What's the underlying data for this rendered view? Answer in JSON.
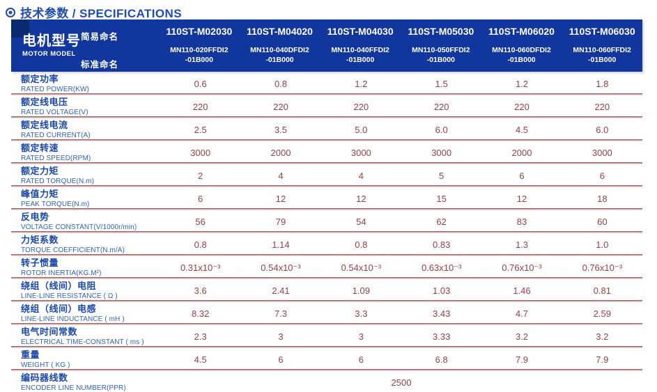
{
  "title": {
    "icon": "circled-dot",
    "text": "技术参数 / SPECIFICATIONS"
  },
  "colors": {
    "title_blue": "#1f4cb3",
    "header_bg": "#11379e",
    "header_corner": "#0a2a70",
    "label_zh": "#1b49ae",
    "label_en": "#2f62c5",
    "value_red": "#9c3e44",
    "separator_dark": "#a06565",
    "separator_light": "#f0dcdc"
  },
  "table": {
    "header": {
      "row_label_zh": "电机型号",
      "row_label_en": "MOTOR MODEL",
      "simple_name_label": "简易命名",
      "standard_name_label": "标准命名",
      "models": [
        {
          "simple": "110ST-M02030",
          "standard": "MN110-020FFDI2\n-01B000"
        },
        {
          "simple": "110ST-M04020",
          "standard": "MN110-040DFDI2\n-01B000"
        },
        {
          "simple": "110ST-M04030",
          "standard": "MN110-040FFDI2\n-01B000"
        },
        {
          "simple": "110ST-M05030",
          "standard": "MN110-050FFDI2\n-01B000"
        },
        {
          "simple": "110ST-M06020",
          "standard": "MN110-060DFDI2\n-01B000"
        },
        {
          "simple": "110ST-M06030",
          "standard": "MN110-060FFDI2\n-01B000"
        }
      ]
    },
    "rows": [
      {
        "zh": "额定功率",
        "en": "RATED POWER(KW)",
        "values": [
          "0.6",
          "0.8",
          "1.2",
          "1.5",
          "1.2",
          "1.8"
        ]
      },
      {
        "zh": "额定线电压",
        "en": "RATED VOLTAGE(V)",
        "values": [
          "220",
          "220",
          "220",
          "220",
          "220",
          "220"
        ]
      },
      {
        "zh": "额定线电流",
        "en": "RATED CURRENT(A)",
        "values": [
          "2.5",
          "3.5",
          "5.0",
          "6.0",
          "4.5",
          "6.0"
        ]
      },
      {
        "zh": "额定转速",
        "en": "RATED SPEED(RPM)",
        "values": [
          "3000",
          "2000",
          "3000",
          "3000",
          "2000",
          "3000"
        ]
      },
      {
        "zh": "额定力矩",
        "en": "RATED TORQUE(N.m)",
        "values": [
          "2",
          "4",
          "4",
          "5",
          "6",
          "6"
        ]
      },
      {
        "zh": "峰值力矩",
        "en": "PEAK TORQUE(N.m)",
        "values": [
          "6",
          "12",
          "12",
          "15",
          "12",
          "18"
        ]
      },
      {
        "zh": "反电势",
        "en": "VOLTAGE CONSTANT(V/1000r/min)",
        "values": [
          "56",
          "79",
          "54",
          "62",
          "83",
          "60"
        ]
      },
      {
        "zh": "力矩系数",
        "en": "TORQUE COEFFICIENT(N.m/A)",
        "values": [
          "0.8",
          "1.14",
          "0.8",
          "0.83",
          "1.3",
          "1.0"
        ]
      },
      {
        "zh": "转子惯量",
        "en": "ROTOR INERTIA(KG.M²)",
        "values": [
          "0.31x10⁻³",
          "0.54x10⁻³",
          "0.54x10⁻³",
          "0.63x10⁻³",
          "0.76x10⁻³",
          "0.76x10⁻³"
        ]
      },
      {
        "zh": "绕组（线间）电阻",
        "en": "LINE-LINE RESISTANCE ( Ω )",
        "values": [
          "3.6",
          "2.41",
          "1.09",
          "1.03",
          "1.46",
          "0.81"
        ]
      },
      {
        "zh": "绕组（线间）电感",
        "en": "LINE-LINE INDUCTANCE ( mH )",
        "values": [
          "8.32",
          "7.3",
          "3.3",
          "3.43",
          "4.7",
          "2.59"
        ]
      },
      {
        "zh": "电气时间常数",
        "en": "ELECTRICAL TIME-CONSTANT ( ms )",
        "values": [
          "2.3",
          "3",
          "3",
          "3.33",
          "3.2",
          "3.2"
        ]
      },
      {
        "zh": "重量",
        "en": "WEIGHT ( KG )",
        "values": [
          "4.5",
          "6",
          "6",
          "6.8",
          "7.9",
          "7.9"
        ]
      },
      {
        "zh": "编码器线数",
        "en": "ENCODER LINE NUMBER(PPR)",
        "span_value": "2500"
      }
    ]
  }
}
